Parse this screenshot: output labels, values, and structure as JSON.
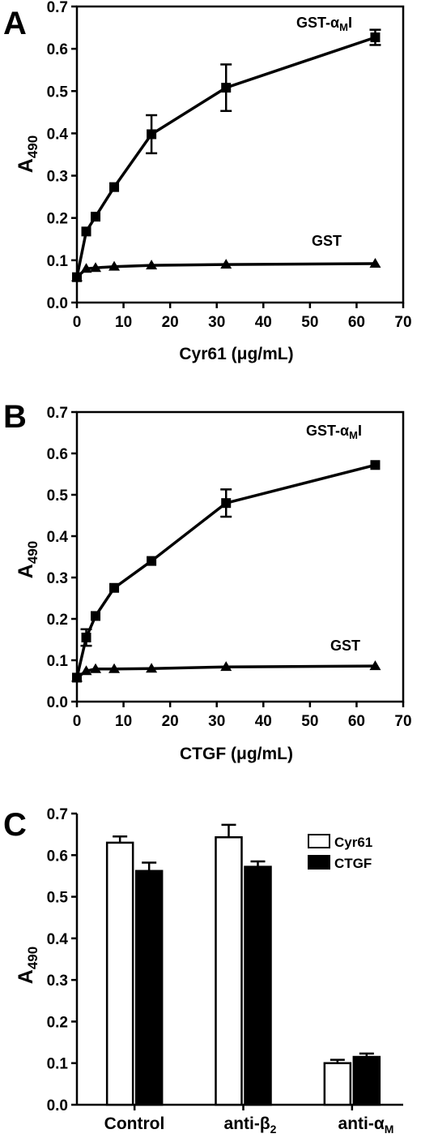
{
  "chart_data": [
    {
      "panel": "A",
      "type": "line",
      "xlabel": "Cyr61 (μg/mL)",
      "ylabel": "A490",
      "xlim": [
        0,
        70
      ],
      "ylim": [
        0,
        0.7
      ],
      "x_ticks": [
        0,
        10,
        20,
        30,
        40,
        50,
        60,
        70
      ],
      "y_ticks": [
        0.0,
        0.1,
        0.2,
        0.3,
        0.4,
        0.5,
        0.6,
        0.7
      ],
      "series": [
        {
          "name": "GST-αMI",
          "marker": "square",
          "x": [
            0,
            2,
            4,
            8,
            16,
            32,
            64
          ],
          "y": [
            0.06,
            0.168,
            0.203,
            0.273,
            0.398,
            0.508,
            0.627
          ],
          "error": [
            0,
            0,
            0,
            0,
            0.045,
            0.055,
            0.018
          ]
        },
        {
          "name": "GST",
          "marker": "triangle",
          "x": [
            0,
            2,
            4,
            8,
            16,
            32,
            64
          ],
          "y": [
            0.06,
            0.08,
            0.082,
            0.085,
            0.088,
            0.09,
            0.092
          ],
          "error": [
            0,
            0,
            0,
            0,
            0,
            0,
            0
          ]
        }
      ],
      "grid": false
    },
    {
      "panel": "B",
      "type": "line",
      "xlabel": "CTGF (μg/mL)",
      "ylabel": "A490",
      "xlim": [
        0,
        70
      ],
      "ylim": [
        0,
        0.7
      ],
      "x_ticks": [
        0,
        10,
        20,
        30,
        40,
        50,
        60,
        70
      ],
      "y_ticks": [
        0.0,
        0.1,
        0.2,
        0.3,
        0.4,
        0.5,
        0.6,
        0.7
      ],
      "series": [
        {
          "name": "GST-αMI",
          "marker": "square",
          "x": [
            0,
            2,
            4,
            8,
            16,
            32,
            64
          ],
          "y": [
            0.058,
            0.155,
            0.207,
            0.275,
            0.34,
            0.48,
            0.572
          ],
          "error": [
            0,
            0.02,
            0,
            0,
            0,
            0.033,
            0
          ]
        },
        {
          "name": "GST",
          "marker": "triangle",
          "x": [
            0,
            2,
            4,
            8,
            16,
            32,
            64
          ],
          "y": [
            0.058,
            0.074,
            0.079,
            0.079,
            0.08,
            0.084,
            0.086
          ],
          "error": [
            0,
            0,
            0,
            0,
            0,
            0,
            0
          ]
        }
      ],
      "grid": false
    },
    {
      "panel": "C",
      "type": "bar",
      "ylabel": "A490",
      "ylim": [
        0,
        0.7
      ],
      "y_ticks": [
        0.0,
        0.1,
        0.2,
        0.3,
        0.4,
        0.5,
        0.6,
        0.7
      ],
      "categories": [
        "Control",
        "anti-β2",
        "anti-αM"
      ],
      "series": [
        {
          "name": "Cyr61",
          "fill": "#ffffff",
          "values": [
            0.63,
            0.643,
            0.1
          ],
          "error": [
            0.015,
            0.03,
            0.008
          ]
        },
        {
          "name": "CTGF",
          "fill": "#000000",
          "values": [
            0.562,
            0.572,
            0.115
          ],
          "error": [
            0.02,
            0.013,
            0.008
          ]
        }
      ],
      "legend_position": "top-right",
      "grid": false
    }
  ],
  "labels": {
    "panel_a": "A",
    "panel_b": "B",
    "panel_c": "C",
    "y_main": "A",
    "y_sub": "490",
    "a_xlabel_main": "Cyr61 (",
    "b_xlabel_main": "CTGF (",
    "mu": "μ",
    "x_unit": "g/mL)",
    "series_top_main": "GST-",
    "series_top_alpha": "α",
    "series_top_sub": "M",
    "series_top_end": "I",
    "series_bottom": "GST",
    "legend_cyr61": "Cyr61",
    "legend_ctgf": "CTGF",
    "cat_control": "Control",
    "cat_anti_b2_main": "anti-",
    "cat_anti_b2_beta": "β",
    "cat_anti_b2_sub": "2",
    "cat_anti_am_main": "anti-",
    "cat_anti_am_alpha": "α",
    "cat_anti_am_sub": "M"
  }
}
